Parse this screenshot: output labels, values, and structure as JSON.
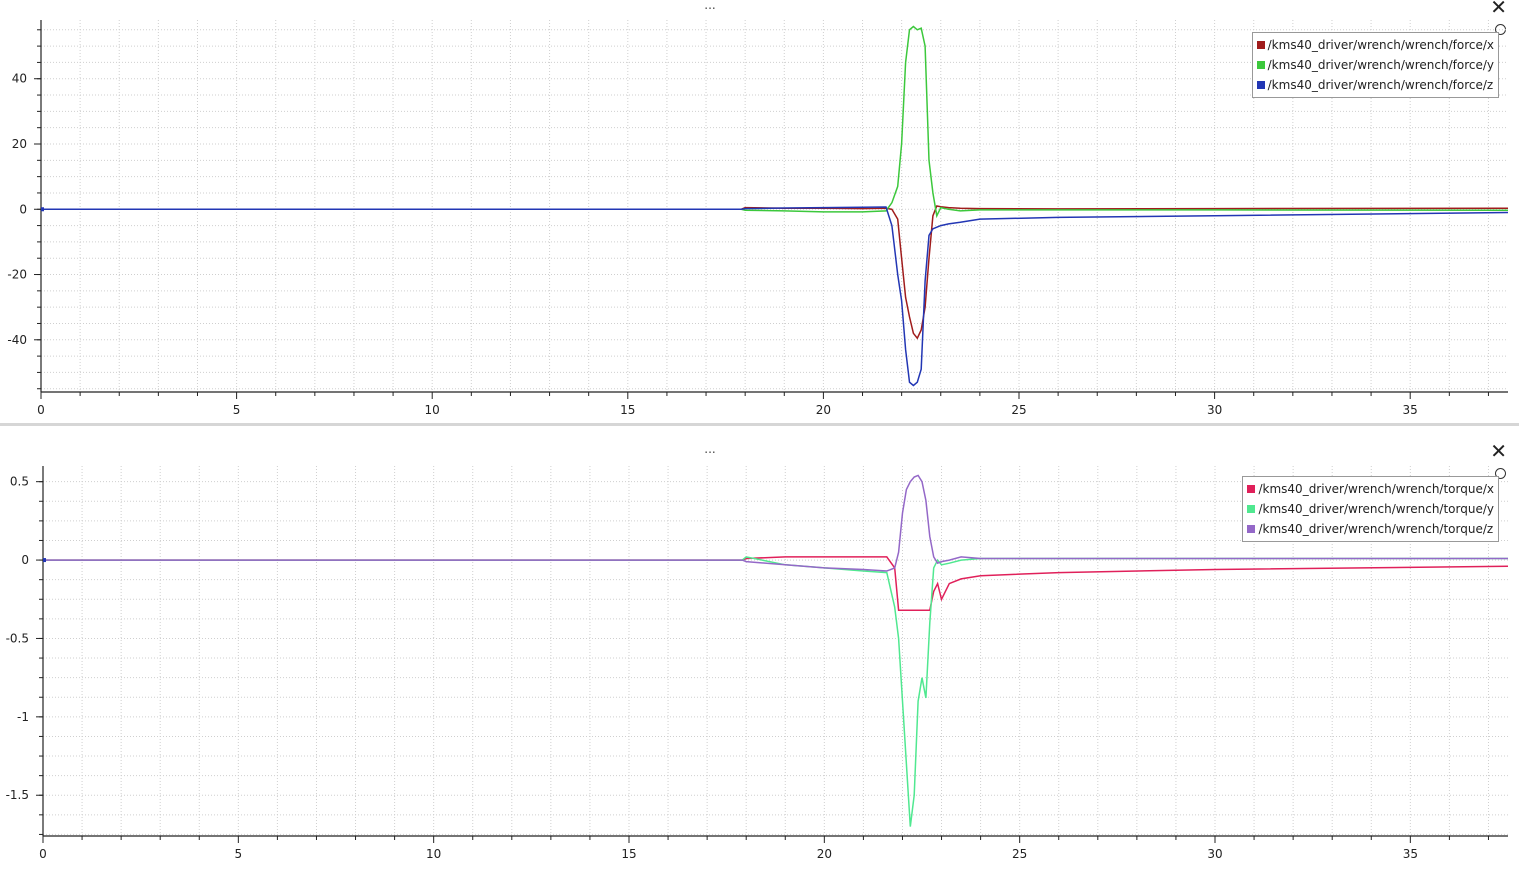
{
  "window": {
    "menu_glyph": "...",
    "close_glyph": "✕"
  },
  "chart_data": [
    {
      "type": "line",
      "title": "",
      "xlabel": "",
      "ylabel": "",
      "xlim": [
        0,
        37.5
      ],
      "ylim": [
        -56,
        58
      ],
      "xticks": [
        0,
        5,
        10,
        15,
        20,
        25,
        30,
        35
      ],
      "yticks": [
        -40,
        -20,
        0,
        20,
        40
      ],
      "grid": true,
      "legend": "top-right",
      "series": [
        {
          "name": "/kms40_driver/wrench/wrench/force/x",
          "color": "#a01c1c",
          "x": [
            0,
            17.9,
            18,
            19,
            20,
            21,
            21.6,
            21.75,
            21.9,
            22.0,
            22.1,
            22.2,
            22.3,
            22.4,
            22.5,
            22.6,
            22.7,
            22.8,
            22.9,
            23.0,
            23.2,
            23.5,
            24,
            26,
            30,
            37.5
          ],
          "y": [
            0,
            0,
            0.5,
            0.3,
            0.3,
            0.2,
            0.3,
            0,
            -3,
            -15,
            -27,
            -33,
            -38,
            -39.5,
            -37,
            -30,
            -15,
            -2,
            1,
            0.8,
            0.5,
            0.3,
            0.2,
            0.1,
            0.2,
            0.3
          ]
        },
        {
          "name": "/kms40_driver/wrench/wrench/force/y",
          "color": "#3cc83c",
          "x": [
            0,
            17.9,
            18,
            19,
            20,
            21,
            21.6,
            21.75,
            21.9,
            22.0,
            22.1,
            22.2,
            22.3,
            22.4,
            22.5,
            22.6,
            22.7,
            22.8,
            22.9,
            23.0,
            23.2,
            23.5,
            24,
            26,
            30,
            37.5
          ],
          "y": [
            0,
            0,
            -0.3,
            -0.5,
            -0.8,
            -0.8,
            -0.5,
            2,
            7,
            20,
            45,
            55,
            56,
            55,
            55.5,
            50,
            15,
            5,
            -2,
            0.5,
            0,
            -0.5,
            -0.2,
            -0.2,
            -0.2,
            -0.3
          ]
        },
        {
          "name": "/kms40_driver/wrench/wrench/force/z",
          "color": "#2236b4",
          "x": [
            0,
            17.9,
            18,
            19,
            20,
            21,
            21.6,
            21.75,
            21.9,
            22.0,
            22.1,
            22.2,
            22.3,
            22.4,
            22.5,
            22.6,
            22.7,
            22.8,
            22.9,
            23.0,
            23.2,
            23.5,
            24,
            26,
            30,
            37.5
          ],
          "y": [
            0,
            0,
            0.2,
            0.4,
            0.5,
            0.6,
            0.7,
            -5,
            -20,
            -28,
            -43,
            -53,
            -54,
            -53,
            -49,
            -22,
            -8,
            -6,
            -5.5,
            -5,
            -4.5,
            -4,
            -3,
            -2.5,
            -2,
            -1
          ]
        }
      ]
    },
    {
      "type": "line",
      "title": "",
      "xlabel": "",
      "ylabel": "",
      "xlim": [
        0,
        37.5
      ],
      "ylim": [
        -1.76,
        0.6
      ],
      "xticks": [
        0,
        5,
        10,
        15,
        20,
        25,
        30,
        35
      ],
      "yticks": [
        -1.5,
        -1,
        -0.5,
        0,
        0.5
      ],
      "grid": true,
      "legend": "top-right",
      "series": [
        {
          "name": "/kms40_driver/wrench/wrench/torque/x",
          "color": "#e0205a",
          "x": [
            0,
            17.9,
            18,
            19,
            20,
            21,
            21.6,
            21.8,
            21.9,
            22.0,
            22.2,
            22.4,
            22.6,
            22.7,
            22.8,
            22.9,
            23.0,
            23.2,
            23.5,
            24,
            26,
            30,
            37.5
          ],
          "y": [
            0,
            0,
            0.01,
            0.02,
            0.02,
            0.02,
            0.02,
            -0.05,
            -0.32,
            -0.32,
            -0.32,
            -0.32,
            -0.32,
            -0.32,
            -0.2,
            -0.15,
            -0.25,
            -0.15,
            -0.12,
            -0.1,
            -0.08,
            -0.06,
            -0.04
          ]
        },
        {
          "name": "/kms40_driver/wrench/wrench/torque/y",
          "color": "#50e890",
          "x": [
            0,
            17.9,
            18,
            19,
            20,
            21,
            21.6,
            21.8,
            21.9,
            22.0,
            22.1,
            22.2,
            22.3,
            22.4,
            22.5,
            22.6,
            22.7,
            22.8,
            22.9,
            23.0,
            23.2,
            23.5,
            24,
            26,
            30,
            37.5
          ],
          "y": [
            0,
            0,
            0.02,
            -0.03,
            -0.05,
            -0.07,
            -0.08,
            -0.3,
            -0.5,
            -0.9,
            -1.3,
            -1.7,
            -1.5,
            -0.9,
            -0.75,
            -0.88,
            -0.4,
            -0.05,
            0,
            -0.03,
            -0.02,
            0,
            0.01,
            0.01,
            0.01,
            0.01
          ]
        },
        {
          "name": "/kms40_driver/wrench/wrench/torque/z",
          "color": "#9468c8",
          "x": [
            0,
            17.9,
            18,
            19,
            20,
            21,
            21.6,
            21.8,
            21.9,
            22.0,
            22.1,
            22.2,
            22.3,
            22.4,
            22.5,
            22.6,
            22.7,
            22.8,
            22.9,
            23.0,
            23.2,
            23.5,
            24,
            26,
            30,
            37.5
          ],
          "y": [
            0,
            0,
            -0.01,
            -0.03,
            -0.05,
            -0.06,
            -0.07,
            -0.05,
            0.05,
            0.3,
            0.45,
            0.5,
            0.53,
            0.54,
            0.5,
            0.38,
            0.15,
            0.02,
            -0.02,
            -0.01,
            0,
            0.02,
            0.01,
            0.01,
            0.01,
            0.01
          ]
        }
      ]
    }
  ]
}
